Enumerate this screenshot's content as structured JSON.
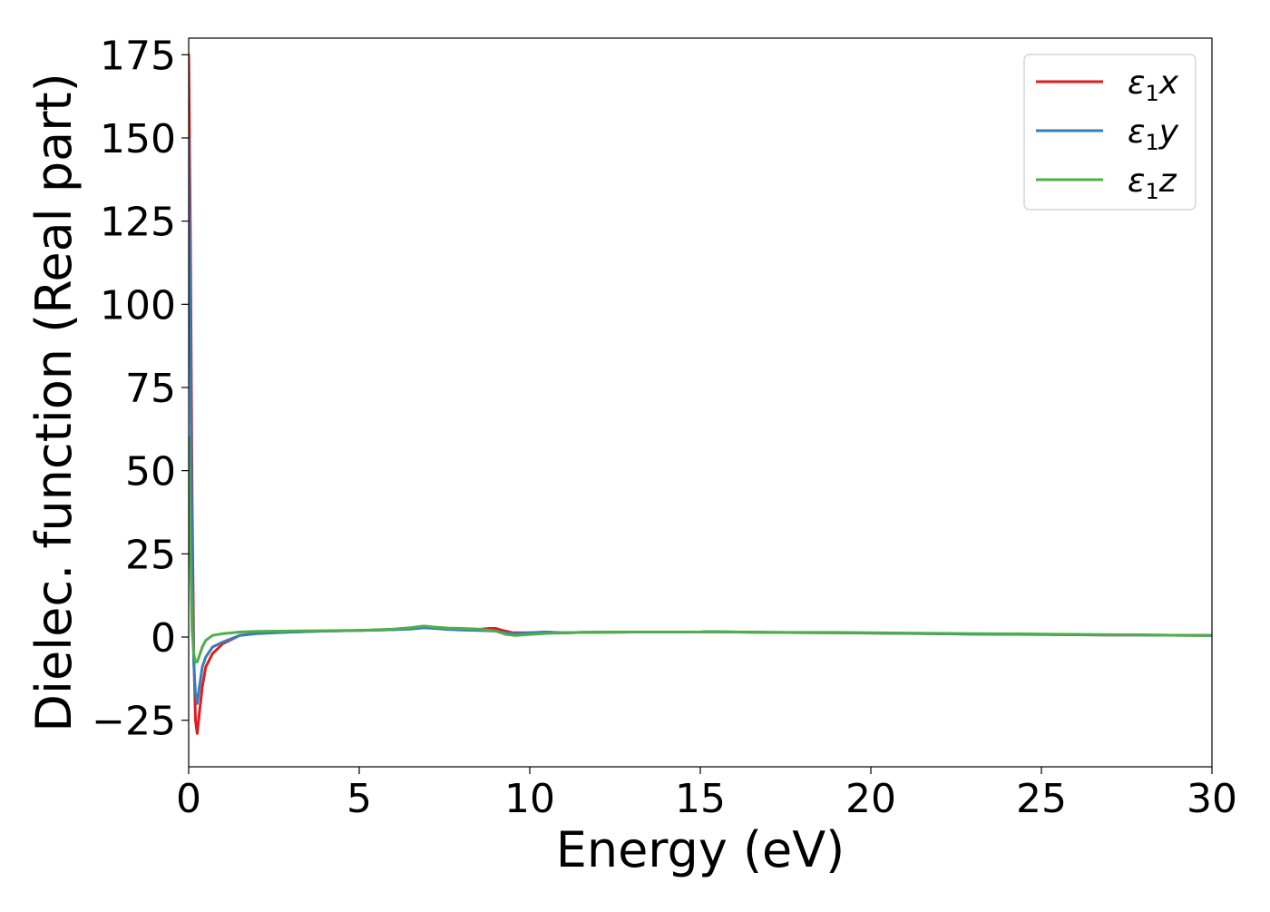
{
  "chart_data": {
    "type": "line",
    "title": "",
    "xlabel": "Energy (eV)",
    "ylabel": "Dielec. function (Real part)",
    "xlim": [
      0,
      30
    ],
    "ylim": [
      -39,
      180
    ],
    "xticks": [
      0,
      5,
      10,
      15,
      20,
      25,
      30
    ],
    "xtick_labels": [
      "0",
      "5",
      "10",
      "15",
      "20",
      "25",
      "30"
    ],
    "yticks": [
      -25,
      0,
      25,
      50,
      75,
      100,
      125,
      150,
      175
    ],
    "ytick_labels": [
      "−25",
      "0",
      "25",
      "50",
      "75",
      "100",
      "125",
      "150",
      "175"
    ],
    "grid": false,
    "legend_position": "top-right",
    "series": [
      {
        "name": "ε₁x",
        "legend_label": {
          "base": "ε",
          "sub": "1",
          "axis": "x"
        },
        "color": "#e41a1c",
        "x": [
          0.0,
          0.05,
          0.1,
          0.15,
          0.2,
          0.25,
          0.3,
          0.4,
          0.5,
          0.7,
          1.0,
          1.5,
          2.0,
          3.0,
          4.0,
          5.0,
          6.0,
          6.5,
          6.9,
          7.2,
          7.6,
          8.0,
          8.5,
          8.8,
          9.0,
          9.2,
          9.5,
          10.0,
          10.5,
          10.8,
          11.5,
          13,
          15,
          15.2,
          17,
          19,
          21,
          23,
          25,
          27,
          28,
          30
        ],
        "y": [
          175,
          120,
          40,
          -5,
          -25,
          -29,
          -24,
          -15,
          -9,
          -5,
          -2,
          0.5,
          1.2,
          1.5,
          1.8,
          2.0,
          2.2,
          2.5,
          3.0,
          2.8,
          2.5,
          2.3,
          2.3,
          2.6,
          2.6,
          2.0,
          1.3,
          1.3,
          1.5,
          1.2,
          1.4,
          1.5,
          1.5,
          1.6,
          1.4,
          1.3,
          1.1,
          0.9,
          0.8,
          0.6,
          0.6,
          0.5
        ]
      },
      {
        "name": "ε₁y",
        "legend_label": {
          "base": "ε",
          "sub": "1",
          "axis": "y"
        },
        "color": "#377eb8",
        "x": [
          0.0,
          0.05,
          0.1,
          0.15,
          0.2,
          0.25,
          0.3,
          0.4,
          0.5,
          0.7,
          1.0,
          1.5,
          2.0,
          3.0,
          4.0,
          5.0,
          6.0,
          6.5,
          6.9,
          7.2,
          7.6,
          8.0,
          8.5,
          9.0,
          9.3,
          9.6,
          10.0,
          10.5,
          11.0,
          11.5,
          13,
          15,
          15.2,
          17,
          19,
          21,
          23,
          25,
          27,
          28,
          30
        ],
        "y": [
          150,
          90,
          20,
          -8,
          -17,
          -20,
          -16,
          -9,
          -6,
          -3,
          -1.5,
          0.5,
          1.0,
          1.5,
          1.8,
          2.0,
          2.2,
          2.4,
          2.8,
          2.6,
          2.3,
          2.1,
          2.0,
          1.8,
          1.2,
          1.0,
          1.3,
          1.5,
          1.3,
          1.4,
          1.5,
          1.5,
          1.6,
          1.4,
          1.3,
          1.1,
          0.9,
          0.8,
          0.6,
          0.6,
          0.5
        ]
      },
      {
        "name": "ε₁z",
        "legend_label": {
          "base": "ε",
          "sub": "1",
          "axis": "z"
        },
        "color": "#4daf4a",
        "x": [
          0.0,
          0.05,
          0.1,
          0.15,
          0.2,
          0.25,
          0.3,
          0.4,
          0.5,
          0.7,
          1.0,
          1.5,
          2.0,
          3.0,
          4.0,
          5.0,
          6.0,
          6.5,
          6.9,
          7.2,
          7.6,
          8.0,
          8.5,
          9.0,
          9.3,
          9.6,
          10.0,
          10.5,
          11.0,
          11.5,
          13,
          15,
          15.2,
          17,
          19,
          21,
          23,
          25,
          27,
          28,
          30
        ],
        "y": [
          60,
          25,
          2,
          -5,
          -7.5,
          -7.5,
          -6,
          -3,
          -1,
          0.5,
          1.0,
          1.5,
          1.7,
          1.8,
          1.9,
          2.0,
          2.4,
          2.8,
          3.3,
          3.0,
          2.7,
          2.6,
          2.4,
          1.8,
          0.8,
          0.5,
          0.8,
          1.1,
          1.3,
          1.4,
          1.5,
          1.5,
          1.6,
          1.4,
          1.4,
          1.2,
          1.0,
          0.9,
          0.7,
          0.6,
          0.5
        ]
      }
    ]
  }
}
